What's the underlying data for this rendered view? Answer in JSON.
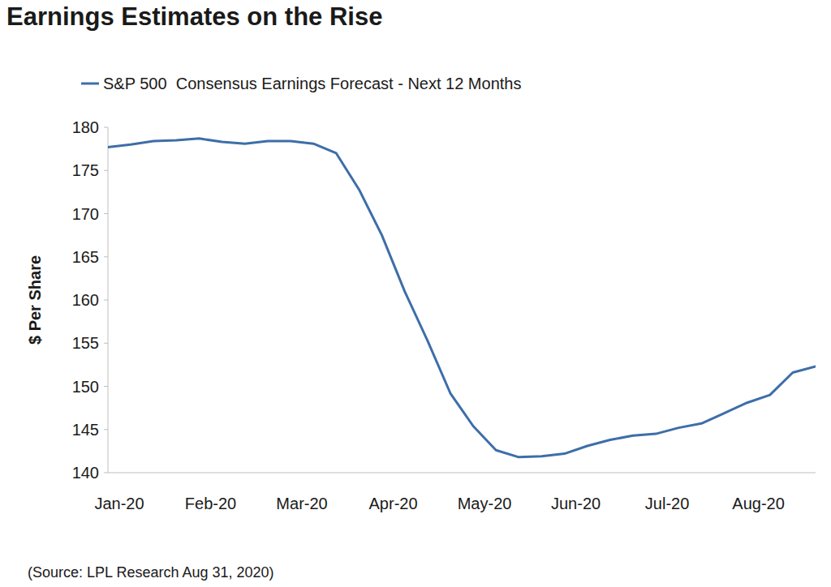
{
  "chart_data": {
    "type": "line",
    "title": "Earnings Estimates on the Rise",
    "y_label": "$ Per Share",
    "source": "(Source: LPL Research Aug 31, 2020)",
    "categories": [
      "Jan-20",
      null,
      null,
      null,
      "Feb-20",
      null,
      null,
      null,
      "Mar-20",
      null,
      null,
      null,
      "Apr-20",
      null,
      null,
      null,
      "May-20",
      null,
      null,
      null,
      "Jun-20",
      null,
      null,
      null,
      "Jul-20",
      null,
      null,
      null,
      "Aug-20",
      null,
      null,
      null
    ],
    "series": [
      {
        "name": "S&P 500  Consensus Earnings Forecast - Next 12 Months",
        "color": "#3d6ea8",
        "values": [
          177.7,
          178.0,
          178.4,
          178.5,
          178.7,
          178.3,
          178.1,
          178.4,
          178.4,
          178.1,
          177.0,
          172.8,
          167.5,
          161.0,
          155.3,
          149.2,
          145.4,
          142.6,
          141.8,
          141.9,
          142.2,
          143.1,
          143.8,
          144.3,
          144.5,
          145.2,
          145.7,
          146.9,
          148.1,
          149.0,
          151.6,
          152.3
        ]
      }
    ],
    "ylim": [
      140,
      180
    ],
    "yticks": [
      140,
      145,
      150,
      155,
      160,
      165,
      170,
      175,
      180
    ],
    "grid": false,
    "legend": "top"
  }
}
